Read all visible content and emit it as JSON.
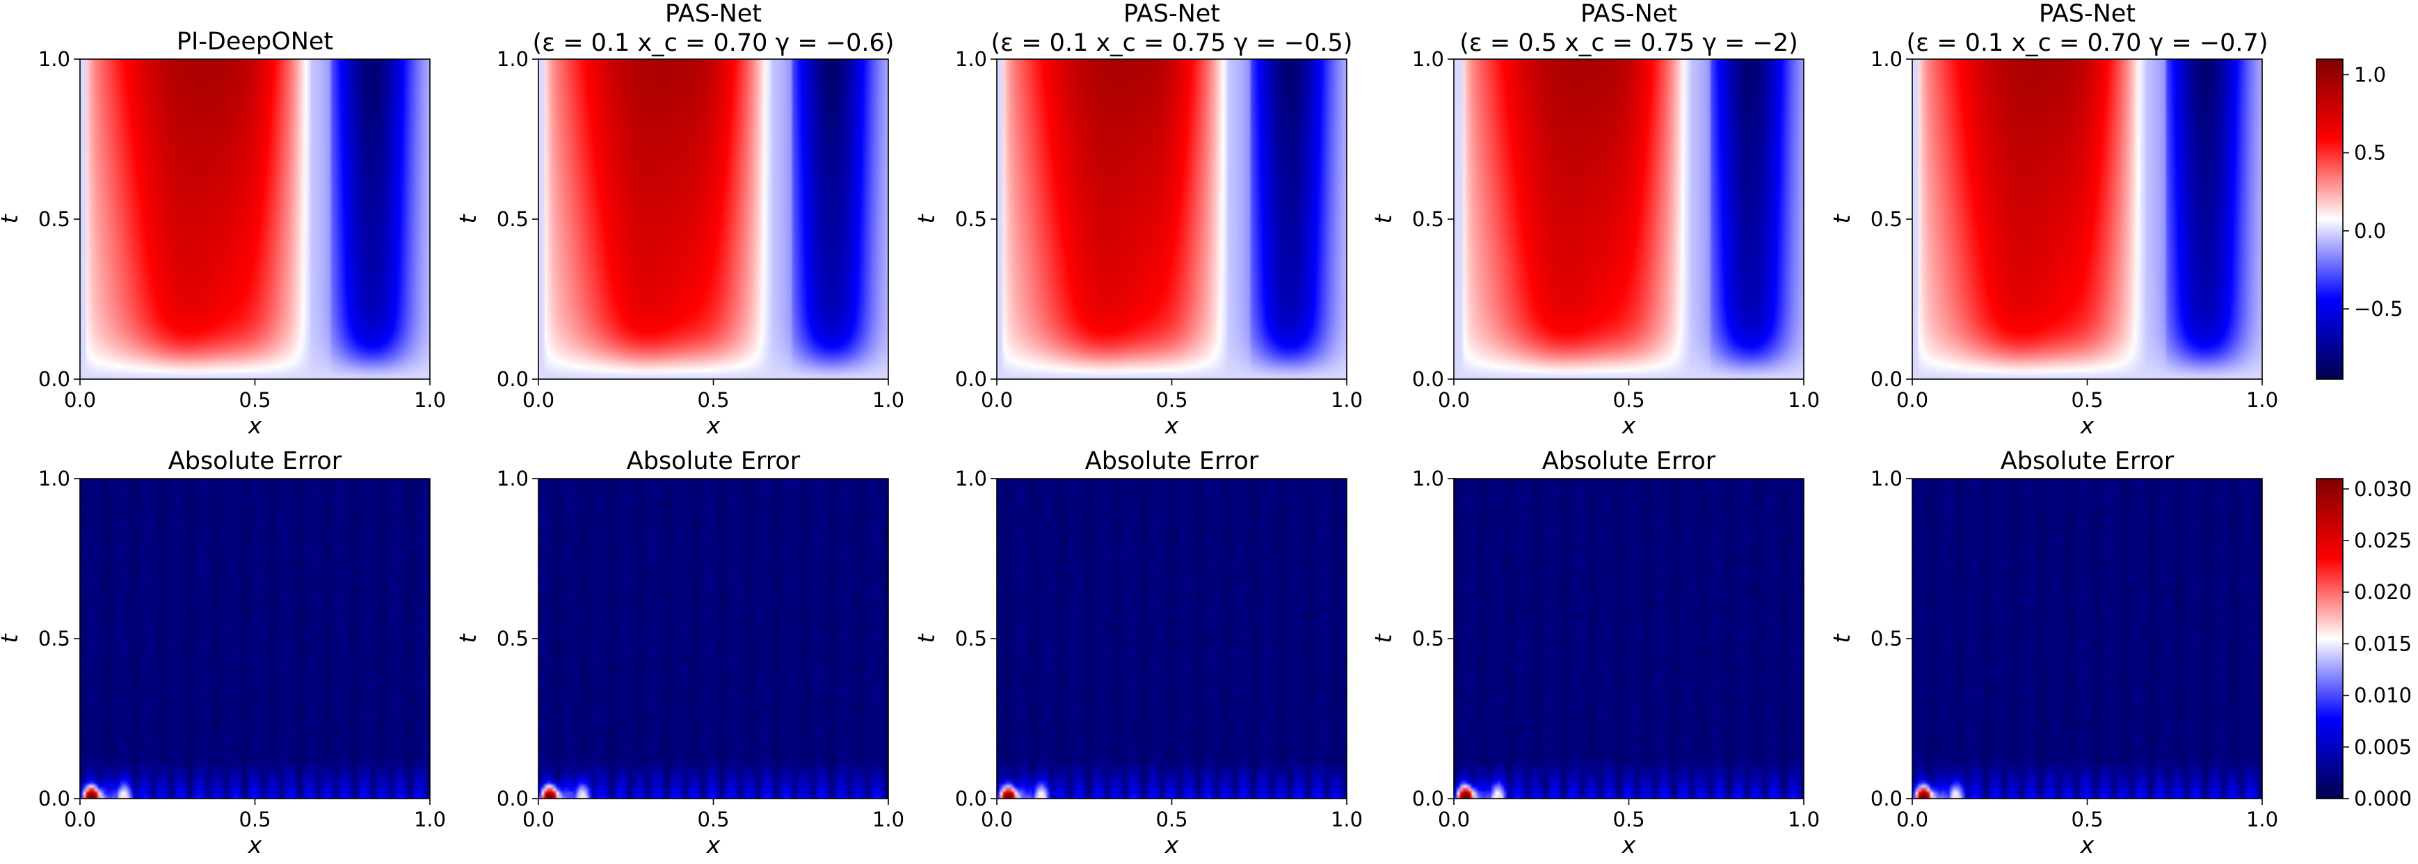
{
  "chart_data": [
    {
      "type": "heatmap",
      "row": "solution",
      "title": "PI-DeepONet",
      "subtitle": "",
      "xlabel": "x",
      "ylabel": "t",
      "xlim": [
        0,
        1
      ],
      "ylim": [
        0,
        1
      ],
      "xticks": [
        "0.0",
        "0.5",
        "1.0"
      ],
      "yticks": [
        "0.0",
        "0.5",
        "1.0"
      ],
      "params": {
        "epsilon": null,
        "x_c": null,
        "gamma": null
      }
    },
    {
      "type": "heatmap",
      "row": "solution",
      "title": "PAS-Net",
      "subtitle": "(ε = 0.1 x_c = 0.70 γ = −0.6)",
      "xlabel": "x",
      "ylabel": "t",
      "xlim": [
        0,
        1
      ],
      "ylim": [
        0,
        1
      ],
      "xticks": [
        "0.0",
        "0.5",
        "1.0"
      ],
      "yticks": [
        "0.0",
        "0.5",
        "1.0"
      ],
      "params": {
        "epsilon": 0.1,
        "x_c": 0.7,
        "gamma": -0.6
      }
    },
    {
      "type": "heatmap",
      "row": "solution",
      "title": "PAS-Net",
      "subtitle": "(ε = 0.1 x_c = 0.75 γ = −0.5)",
      "xlabel": "x",
      "ylabel": "t",
      "xlim": [
        0,
        1
      ],
      "ylim": [
        0,
        1
      ],
      "xticks": [
        "0.0",
        "0.5",
        "1.0"
      ],
      "yticks": [
        "0.0",
        "0.5",
        "1.0"
      ],
      "params": {
        "epsilon": 0.1,
        "x_c": 0.75,
        "gamma": -0.5
      }
    },
    {
      "type": "heatmap",
      "row": "solution",
      "title": "PAS-Net",
      "subtitle": "(ε = 0.5 x_c = 0.75 γ = −2)",
      "xlabel": "x",
      "ylabel": "t",
      "xlim": [
        0,
        1
      ],
      "ylim": [
        0,
        1
      ],
      "xticks": [
        "0.0",
        "0.5",
        "1.0"
      ],
      "yticks": [
        "0.0",
        "0.5",
        "1.0"
      ],
      "params": {
        "epsilon": 0.5,
        "x_c": 0.75,
        "gamma": -2
      }
    },
    {
      "type": "heatmap",
      "row": "solution",
      "title": "PAS-Net",
      "subtitle": "(ε = 0.1 x_c = 0.70 γ = −0.7)",
      "xlabel": "x",
      "ylabel": "t",
      "xlim": [
        0,
        1
      ],
      "ylim": [
        0,
        1
      ],
      "xticks": [
        "0.0",
        "0.5",
        "1.0"
      ],
      "yticks": [
        "0.0",
        "0.5",
        "1.0"
      ],
      "params": {
        "epsilon": 0.1,
        "x_c": 0.7,
        "gamma": -0.7
      }
    },
    {
      "type": "heatmap",
      "row": "error",
      "title": "Absolute Error",
      "subtitle": "",
      "xlabel": "x",
      "ylabel": "t",
      "xlim": [
        0,
        1
      ],
      "ylim": [
        0,
        1
      ],
      "xticks": [
        "0.0",
        "0.5",
        "1.0"
      ],
      "yticks": [
        "0.0",
        "0.5",
        "1.0"
      ]
    },
    {
      "type": "heatmap",
      "row": "error",
      "title": "Absolute Error",
      "subtitle": "",
      "xlabel": "x",
      "ylabel": "t",
      "xlim": [
        0,
        1
      ],
      "ylim": [
        0,
        1
      ],
      "xticks": [
        "0.0",
        "0.5",
        "1.0"
      ],
      "yticks": [
        "0.0",
        "0.5",
        "1.0"
      ]
    },
    {
      "type": "heatmap",
      "row": "error",
      "title": "Absolute Error",
      "subtitle": "",
      "xlabel": "x",
      "ylabel": "t",
      "xlim": [
        0,
        1
      ],
      "ylim": [
        0,
        1
      ],
      "xticks": [
        "0.0",
        "0.5",
        "1.0"
      ],
      "yticks": [
        "0.0",
        "0.5",
        "1.0"
      ]
    },
    {
      "type": "heatmap",
      "row": "error",
      "title": "Absolute Error",
      "subtitle": "",
      "xlabel": "x",
      "ylabel": "t",
      "xlim": [
        0,
        1
      ],
      "ylim": [
        0,
        1
      ],
      "xticks": [
        "0.0",
        "0.5",
        "1.0"
      ],
      "yticks": [
        "0.0",
        "0.5",
        "1.0"
      ]
    },
    {
      "type": "heatmap",
      "row": "error",
      "title": "Absolute Error",
      "subtitle": "",
      "xlabel": "x",
      "ylabel": "t",
      "xlim": [
        0,
        1
      ],
      "ylim": [
        0,
        1
      ],
      "xticks": [
        "0.0",
        "0.5",
        "1.0"
      ],
      "yticks": [
        "0.0",
        "0.5",
        "1.0"
      ]
    }
  ],
  "colorbars": [
    {
      "row": "solution",
      "colormap": "seismic",
      "vmin": -0.95,
      "vmax": 1.1,
      "ticks": [
        "1.0",
        "0.5",
        "0.0",
        "−0.5"
      ],
      "tick_values": [
        1.0,
        0.5,
        0.0,
        -0.5
      ]
    },
    {
      "row": "error",
      "colormap": "seismic",
      "vmin": 0.0,
      "vmax": 0.031,
      "ticks": [
        "0.030",
        "0.025",
        "0.020",
        "0.015",
        "0.010",
        "0.005",
        "0.000"
      ],
      "tick_values": [
        0.03,
        0.025,
        0.02,
        0.015,
        0.01,
        0.005,
        0.0
      ]
    }
  ],
  "colors": {
    "seismic_low": "#00004c",
    "seismic_mid": "#ffffff",
    "seismic_high": "#800000"
  }
}
